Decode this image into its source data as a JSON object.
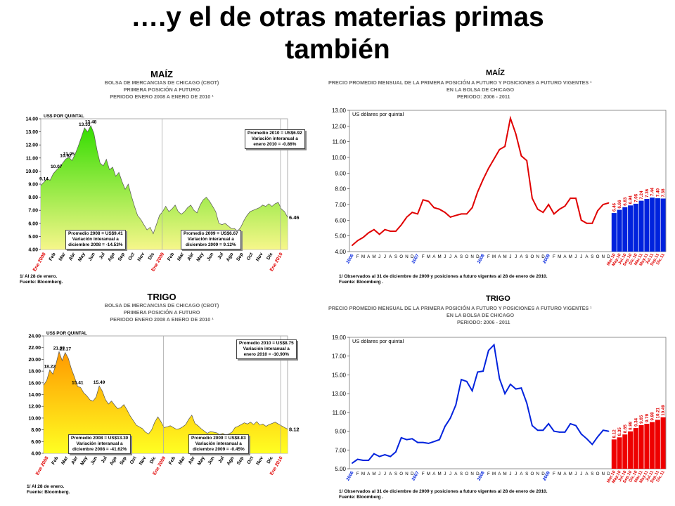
{
  "slide": {
    "title_line1": "….y el de otras materias primas",
    "title_line2": "también"
  },
  "charts": {
    "maiz_left": {
      "heading": "MAÍZ",
      "sub1": "BOLSA DE MERCANCIAS DE CHICAGO (CBOT)",
      "sub2": "PRIMERA POSICIÓN A FUTURO",
      "sub3": "PERIODO ENERO 2008 A ENERO DE 2010 ¹",
      "unit": "US$ POR QUINTAL",
      "footnote1": "1/ Al 28 de enero.",
      "footnote2": "Fuente: Bloomberg.",
      "boxes": [
        {
          "l1": "Promedio 2010 = US$6.92",
          "l2": "Variación interanual a",
          "l3": "enero 2010 = -0.86%"
        },
        {
          "l1": "Promedio 2008 = US$9.41",
          "l2": "Variación interanual a",
          "l3": "diciembre 2008 = -14.53%"
        },
        {
          "l1": "Promedio 2009 = US$6.67",
          "l2": "Variación interanual a",
          "l3": "diciembre 2009 = 9.12%"
        }
      ],
      "chart_data": {
        "type": "area",
        "unit": "US$ POR QUINTAL",
        "ylim": [
          4,
          14
        ],
        "yticks": [
          "4.00",
          "5.00",
          "6.00",
          "7.00",
          "8.00",
          "9.00",
          "10.00",
          "11.00",
          "12.00",
          "13.00",
          "14.00"
        ],
        "xlabels": [
          "Ene 2008",
          "Feb",
          "Mar",
          "Abr",
          "May",
          "Jun",
          "Jul",
          "Ago",
          "Sep",
          "Oct",
          "Nov",
          "Dic",
          "Ene 2009",
          "Feb",
          "Mar",
          "Abr",
          "May",
          "Jun",
          "Jul",
          "Ago",
          "Sep",
          "Oct",
          "Nov",
          "Dic",
          "Ene 2010"
        ],
        "values": [
          8.9,
          9.14,
          9.4,
          9.3,
          9.8,
          10.07,
          10.3,
          10.6,
          10.92,
          11.05,
          10.8,
          11.3,
          11.9,
          12.6,
          13.3,
          13.0,
          13.48,
          12.9,
          11.6,
          10.6,
          10.4,
          10.9,
          10.1,
          10.3,
          9.6,
          9.9,
          9.2,
          8.6,
          9.0,
          8.1,
          7.3,
          6.6,
          6.3,
          5.9,
          5.5,
          5.7,
          5.2,
          5.9,
          6.6,
          6.9,
          7.3,
          6.9,
          7.1,
          7.4,
          6.9,
          6.7,
          6.9,
          7.2,
          7.4,
          7.0,
          6.8,
          7.4,
          7.8,
          8.0,
          7.7,
          7.3,
          6.9,
          6.0,
          5.9,
          6.0,
          5.8,
          5.6,
          5.6,
          5.4,
          5.7,
          6.2,
          6.6,
          6.9,
          7.0,
          7.1,
          7.2,
          7.4,
          7.3,
          7.5,
          7.3,
          7.5,
          7.6,
          7.1,
          6.9,
          6.46
        ],
        "point_labels": [
          {
            "idx": 1,
            "label": "9.14"
          },
          {
            "idx": 5,
            "label": "10.07"
          },
          {
            "idx": 8,
            "label": "10.92"
          },
          {
            "idx": 9,
            "label": "11.05"
          },
          {
            "idx": 14,
            "label": "13.33"
          },
          {
            "idx": 16,
            "label": "13.48"
          }
        ],
        "end_label": "6.46",
        "fill_top": "#33dd00",
        "fill_bottom": "#f6f68a"
      }
    },
    "trigo_left": {
      "heading": "TRIGO",
      "sub1": "BOLSA DE MERCANCIAS DE CHICAGO (CBOT)",
      "sub2": "PRIMERA POSICIÓN A FUTURO",
      "sub3": "PERIODO ENERO 2008 A ENERO DE 2010 ¹",
      "unit": "US$ POR QUINTAL",
      "footnote1": "1/ Al 28 de enero.",
      "footnote2": "Fuente: Bloomberg.",
      "boxes": [
        {
          "l1": "Promedio 2010 = US$8.75",
          "l2": "Variación interanual a",
          "l3": "enero 2010 = -10.90%"
        },
        {
          "l1": "Promedio 2008 = US$13.30",
          "l2": "Variación interanual a",
          "l3": "diciembre 2008 = -41.62%"
        },
        {
          "l1": "Promedio 2009 = US$8.83",
          "l2": "Variación interanual a",
          "l3": "diciembre 2009 = -0.45%"
        }
      ],
      "chart_data": {
        "type": "area",
        "unit": "US$ POR QUINTAL",
        "ylim": [
          4,
          24
        ],
        "yticks": [
          "4.00",
          "6.00",
          "8.00",
          "10.00",
          "12.00",
          "14.00",
          "16.00",
          "18.00",
          "20.00",
          "22.00",
          "24.00"
        ],
        "xlabels": [
          "Ene 2008",
          "Feb",
          "Mar",
          "Abr",
          "May",
          "Jun",
          "Jul",
          "Ago",
          "Sep",
          "Oct",
          "Nov",
          "Dic",
          "Ene 2009",
          "Feb",
          "Mar",
          "Abr",
          "May",
          "Jun",
          "Jul",
          "Ago",
          "Sep",
          "Oct",
          "Nov",
          "Dic",
          "Ene 2010"
        ],
        "values": [
          15.6,
          16.4,
          18.22,
          17.5,
          19.2,
          21.33,
          19.8,
          21.17,
          20.2,
          18.4,
          17.0,
          15.41,
          15.2,
          14.3,
          13.8,
          13.1,
          12.9,
          13.6,
          15.49,
          14.6,
          13.2,
          12.4,
          12.9,
          12.2,
          11.6,
          11.8,
          12.3,
          11.4,
          10.4,
          9.6,
          8.8,
          8.5,
          8.2,
          7.6,
          7.3,
          8.0,
          9.3,
          10.2,
          9.4,
          8.4,
          8.5,
          8.7,
          8.4,
          8.1,
          8.2,
          8.5,
          8.9,
          9.8,
          10.5,
          9.1,
          8.7,
          8.2,
          7.8,
          7.4,
          7.7,
          7.6,
          7.5,
          7.2,
          7.4,
          7.1,
          7.3,
          7.6,
          8.4,
          8.6,
          8.9,
          9.2,
          9.0,
          9.3,
          8.9,
          9.4,
          8.8,
          9.0,
          8.6,
          8.9,
          9.1,
          9.3,
          9.0,
          8.7,
          8.4,
          8.12
        ],
        "point_labels": [
          {
            "idx": 2,
            "label": "18.22"
          },
          {
            "idx": 5,
            "label": "21.33"
          },
          {
            "idx": 7,
            "label": "21.17"
          },
          {
            "idx": 11,
            "label": "15.41"
          },
          {
            "idx": 18,
            "label": "15.49"
          }
        ],
        "end_label": "8.12",
        "fill_top": "#ff9900",
        "fill_bottom": "#ffff22"
      }
    },
    "maiz_right": {
      "heading": "MAÍZ",
      "sub1": "PRECIO PROMEDIO MENSUAL DE LA PRIMERA POSICIÓN A FUTURO Y POSICIONES A FUTURO VIGENTES ¹",
      "sub2": "EN LA BOLSA DE CHICAGO",
      "sub3": "PERIODO: 2006 - 2011",
      "unit": "US dólares por quintal",
      "footnote1": "1/ Observados al 31 de diciembre de 2009 y posiciones a futuro vigentes al 28 de enero de 2010.",
      "footnote2": "Fuente: Bloomberg .",
      "chart_data": {
        "type": "line+bar",
        "unit": "US dólares por quintal",
        "ylim": [
          4,
          13
        ],
        "yticks": [
          "4.00",
          "5.00",
          "6.00",
          "7.00",
          "8.00",
          "9.00",
          "10.00",
          "11.00",
          "12.00",
          "13.00"
        ],
        "line_labels": [
          "2006",
          "F",
          "M",
          "A",
          "M",
          "J",
          "J",
          "A",
          "S",
          "O",
          "N",
          "D",
          "2007",
          "F",
          "M",
          "A",
          "M",
          "J",
          "J",
          "A",
          "S",
          "O",
          "N",
          "D",
          "2008",
          "F",
          "M",
          "A",
          "M",
          "J",
          "J",
          "A",
          "S",
          "O",
          "N",
          "D",
          "2009",
          "F",
          "M",
          "A",
          "M",
          "J",
          "J",
          "A",
          "S",
          "O",
          "N",
          "D"
        ],
        "line_values": [
          4.4,
          4.7,
          4.9,
          5.2,
          5.4,
          5.1,
          5.4,
          5.3,
          5.3,
          5.7,
          6.2,
          6.5,
          6.4,
          7.3,
          7.2,
          6.8,
          6.7,
          6.5,
          6.2,
          6.3,
          6.4,
          6.4,
          6.8,
          7.8,
          8.6,
          9.3,
          9.9,
          10.5,
          10.7,
          12.5,
          11.5,
          10.1,
          9.8,
          7.4,
          6.7,
          6.5,
          7.0,
          6.4,
          6.7,
          6.9,
          7.4,
          7.4,
          6.0,
          5.8,
          5.8,
          6.6,
          7.0,
          7.1
        ],
        "line_color": "#e00000",
        "bar_labels": [
          "Mar.10",
          "May.10",
          "Jul.10",
          "Sep.10",
          "Dic.10",
          "Mar.11",
          "May.11",
          "Jul.11",
          "Sep.11",
          "Dic.11"
        ],
        "bar_values": [
          6.46,
          6.66,
          6.83,
          6.94,
          7.05,
          7.24,
          7.36,
          7.44,
          7.4,
          7.38
        ],
        "bar_value_labels": [
          "6.46",
          "6.66",
          "6.83",
          "6.94",
          "7.05",
          "7.24",
          "7.36",
          "7.44",
          "7.40",
          "7.38"
        ],
        "bar_color": "#0022dd",
        "bar_label_color": "#e00000"
      }
    },
    "trigo_right": {
      "heading": "TRIGO",
      "sub1": "PRECIO PROMEDIO MENSUAL DE LA PRIMERA POSICIÓN A FUTURO Y POSICIONES A FUTURO VIGENTES ¹",
      "sub2": "EN LA BOLSA DE CHICAGO",
      "sub3": "PERIODO: 2006 - 2011",
      "unit": "US dólares por quintal",
      "footnote1": "1/ Observados al 31 de diciembre de 2009 y posiciones a futuro vigentes al 28 de enero de 2010.",
      "footnote2": "Fuente: Bloomberg .",
      "chart_data": {
        "type": "line+bar",
        "unit": "US dólares por quintal",
        "ylim": [
          5,
          19
        ],
        "yticks": [
          "5.00",
          "7.00",
          "9.00",
          "11.00",
          "13.00",
          "15.00",
          "17.00",
          "19.00"
        ],
        "line_labels": [
          "2006",
          "F",
          "M",
          "A",
          "M",
          "J",
          "J",
          "A",
          "S",
          "O",
          "N",
          "D",
          "2007",
          "F",
          "M",
          "A",
          "M",
          "J",
          "J",
          "A",
          "S",
          "O",
          "N",
          "D",
          "2008",
          "F",
          "M",
          "A",
          "M",
          "J",
          "J",
          "A",
          "S",
          "O",
          "N",
          "D",
          "2009",
          "F",
          "M",
          "A",
          "M",
          "J",
          "J",
          "A",
          "S",
          "O",
          "N",
          "D"
        ],
        "line_values": [
          5.6,
          6.0,
          5.9,
          5.9,
          6.6,
          6.3,
          6.5,
          6.3,
          6.8,
          8.3,
          8.1,
          8.2,
          7.8,
          7.8,
          7.7,
          7.9,
          8.1,
          9.5,
          10.4,
          11.8,
          14.5,
          14.3,
          13.3,
          15.3,
          15.4,
          17.6,
          18.2,
          14.6,
          13.0,
          14.0,
          13.5,
          13.6,
          12.0,
          9.6,
          9.1,
          9.1,
          9.8,
          9.0,
          8.9,
          8.9,
          9.8,
          9.6,
          8.7,
          8.2,
          7.6,
          8.4,
          9.1,
          9.0
        ],
        "line_color": "#0022dd",
        "bar_labels": [
          "Mar.10",
          "May.10",
          "Jul.10",
          "Sep.10",
          "Dic.10",
          "Mar.11",
          "May.11",
          "Jul.11",
          "Sep.11",
          "Dic.11"
        ],
        "bar_values": [
          8.12,
          8.35,
          8.65,
          8.98,
          9.34,
          9.65,
          9.79,
          9.98,
          10.21,
          10.49
        ],
        "bar_value_labels": [
          "8.12",
          "8.35",
          "8.65",
          "8.98",
          "9.34",
          "9.65",
          "9.79",
          "9.98",
          "10.21",
          "10.49"
        ],
        "bar_color": "#ee0000",
        "bar_label_color": "#e00000"
      }
    }
  }
}
